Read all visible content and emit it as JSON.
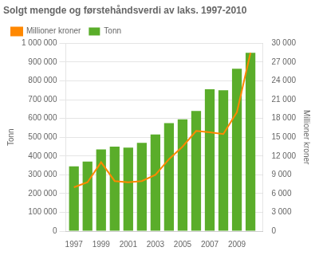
{
  "chart_data": {
    "type": "bar",
    "title": "Solgt mengde og førstehåndsverdi av laks. 1997-2010",
    "ylabel": "Tonn",
    "y2label": "Millioner kroner",
    "x": [
      1997,
      1998,
      1999,
      2000,
      2001,
      2002,
      2003,
      2004,
      2005,
      2006,
      2007,
      2008,
      2009,
      2010
    ],
    "series": [
      {
        "name": "Tonn",
        "type": "bar",
        "color": "#5aad2a",
        "values": [
          345000,
          370000,
          435000,
          450000,
          445000,
          470000,
          515000,
          575000,
          595000,
          640000,
          755000,
          750000,
          865000,
          950000
        ]
      },
      {
        "name": "Millioner kroner",
        "type": "line",
        "color": "#ff8800",
        "axis": "y2",
        "values": [
          7000,
          7800,
          11000,
          8000,
          7800,
          8000,
          9000,
          11500,
          13500,
          16000,
          15800,
          15500,
          19000,
          28500
        ]
      }
    ],
    "xlim": [
      1996.4,
      2010.9
    ],
    "xticks": [
      1997,
      1999,
      2001,
      2003,
      2005,
      2007,
      2009
    ],
    "ylim": [
      0,
      1000000
    ],
    "yticks": [
      0,
      {
        "value": 100000,
        "label": "100 000"
      },
      {
        "value": 200000,
        "label": "200 000"
      },
      {
        "value": 300000,
        "label": "300 000"
      },
      {
        "value": 400000,
        "label": "400 000"
      },
      {
        "value": 500000,
        "label": "500 000"
      },
      {
        "value": 600000,
        "label": "600 000"
      },
      {
        "value": 700000,
        "label": "700 000"
      },
      {
        "value": 800000,
        "label": "800 000"
      },
      {
        "value": 900000,
        "label": "900 000"
      },
      {
        "value": 1000000,
        "label": "1 000 000"
      }
    ],
    "y2lim": [
      0,
      30000
    ],
    "y2ticks": [
      0,
      {
        "value": 3000,
        "label": "3 000"
      },
      {
        "value": 6000,
        "label": "6 000"
      },
      {
        "value": 9000,
        "label": "9 000"
      },
      {
        "value": 12000,
        "label": "12 000"
      },
      {
        "value": 15000,
        "label": "15 000"
      },
      {
        "value": 18000,
        "label": "18 000"
      },
      {
        "value": 21000,
        "label": "21 000"
      },
      {
        "value": 24000,
        "label": "24 000"
      },
      {
        "value": 27000,
        "label": "27 000"
      },
      {
        "value": 30000,
        "label": "30 000"
      }
    ],
    "grid": "y",
    "legend": "upper left"
  }
}
